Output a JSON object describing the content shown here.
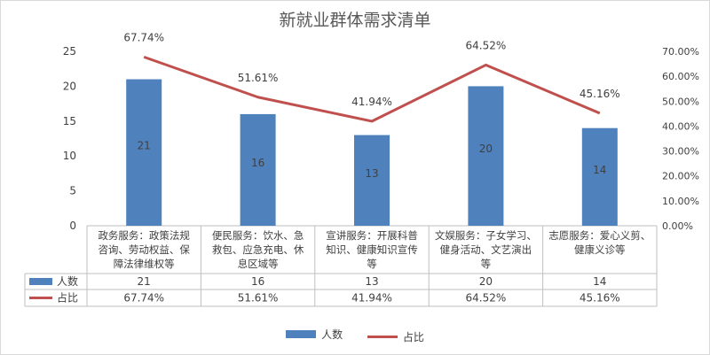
{
  "chart_data": {
    "type": "bar",
    "title": "新就业群体需求清单",
    "categories": [
      [
        "政务服务：政策法规",
        "咨询、劳动权益、保",
        "障法律维权等"
      ],
      [
        "便民服务：饮水、急",
        "救包、应急充电、休",
        "息区域等"
      ],
      [
        "宣讲服务：开展科普",
        "知识、健康知识宣传",
        "等"
      ],
      [
        "文娱服务：子女学习、",
        "健身活动、文艺演出",
        "等"
      ],
      [
        "志愿服务：爱心义剪、",
        "健康义诊等"
      ]
    ],
    "series": [
      {
        "name": "人数",
        "type": "bar",
        "axis": "left",
        "color": "#4f81bd",
        "values": [
          21,
          16,
          13,
          20,
          14
        ],
        "labels": [
          "21",
          "16",
          "13",
          "20",
          "14"
        ]
      },
      {
        "name": "占比",
        "type": "line",
        "axis": "right",
        "color": "#c0504d",
        "values": [
          67.74,
          51.61,
          41.94,
          64.52,
          45.16
        ],
        "labels": [
          "67.74%",
          "51.61%",
          "41.94%",
          "64.52%",
          "45.16%"
        ]
      }
    ],
    "y_left": {
      "min": 0,
      "max": 25,
      "ticks": [
        "0",
        "5",
        "10",
        "15",
        "20",
        "25"
      ]
    },
    "y_right": {
      "min": 0,
      "max": 70,
      "ticks": [
        "0.00%",
        "10.00%",
        "20.00%",
        "30.00%",
        "40.00%",
        "50.00%",
        "60.00%",
        "70.00%"
      ]
    },
    "grid": false,
    "legend_position": "bottom",
    "data_table": true
  }
}
